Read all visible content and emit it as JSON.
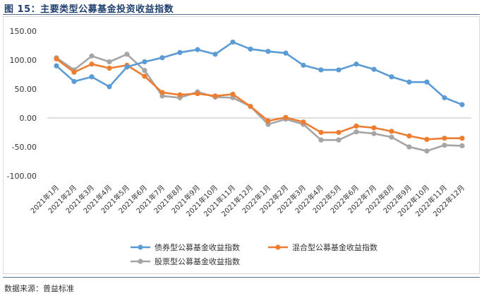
{
  "header": {
    "title": "图 15：主要类型公募基金投资收益指数"
  },
  "footer": {
    "source": "数据来源：普益标准"
  },
  "colors": {
    "debt": "#5b9bd5",
    "mixed": "#ed7d31",
    "equity": "#a5a5a5"
  },
  "chart_data": {
    "type": "line",
    "title": "",
    "xlabel": "",
    "ylabel": "",
    "ylim": [
      -100,
      150
    ],
    "yticks": [
      150,
      100,
      50,
      0,
      -50,
      -100
    ],
    "ytick_labels": [
      "150.00",
      "100.00",
      "50.00",
      "0.00",
      "-50.00",
      "-100.00"
    ],
    "grid": false,
    "legend_position": "bottom",
    "categories": [
      "2021年1月",
      "2021年2月",
      "2021年3月",
      "2021年4月",
      "2021年5月",
      "2021年6月",
      "2021年7月",
      "2021年8月",
      "2021年9月",
      "2021年10月",
      "2021年11月",
      "2021年12月",
      "2022年1月",
      "2022年2月",
      "2022年3月",
      "2022年4月",
      "2022年5月",
      "2022年6月",
      "2022年7月",
      "2022年8月",
      "2022年9月",
      "2022年10月",
      "2022年11月",
      "2022年12月"
    ],
    "series": [
      {
        "name": "债券型公募基金收益指数",
        "color": "#5b9bd5",
        "values": [
          90,
          63,
          71,
          54,
          88,
          97,
          104,
          113,
          118,
          110,
          131,
          119,
          115,
          112,
          91,
          83,
          83,
          93,
          84,
          71,
          62,
          62,
          35,
          23
        ]
      },
      {
        "name": "混合型公募基金收益指数",
        "color": "#ed7d31",
        "values": [
          102,
          79,
          93,
          86,
          91,
          72,
          44,
          40,
          42,
          38,
          41,
          20,
          -5,
          1,
          -7,
          -25,
          -25,
          -14,
          -17,
          -23,
          -31,
          -37,
          -35,
          -35
        ]
      },
      {
        "name": "股票型公募基金收益指数",
        "color": "#a5a5a5",
        "values": [
          104,
          83,
          107,
          97,
          110,
          82,
          38,
          35,
          45,
          36,
          35,
          20,
          -11,
          -2,
          -11,
          -38,
          -38,
          -24,
          -27,
          -33,
          -50,
          -57,
          -47,
          -48
        ]
      }
    ]
  }
}
